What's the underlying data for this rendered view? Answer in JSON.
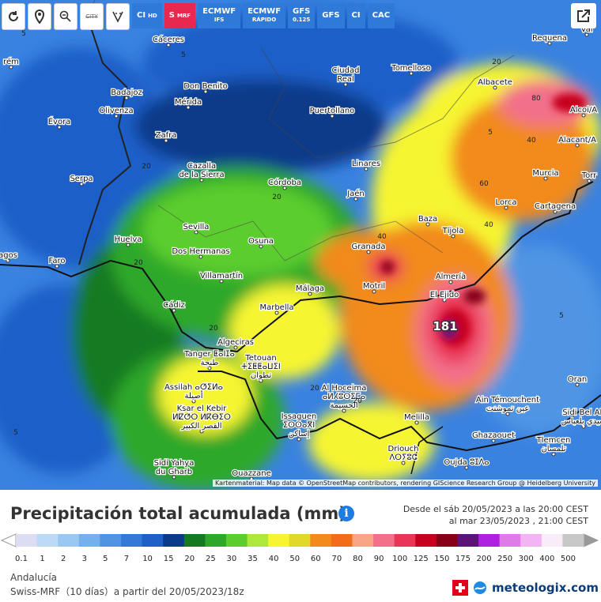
{
  "toolbar": {
    "buttons": [
      {
        "main": "CI",
        "sub": "HD"
      },
      {
        "main": "S",
        "sub": "MRF"
      },
      {
        "main": "ECMWF",
        "sub": "IFS"
      },
      {
        "main": "ECMWF",
        "sub": "RÁPIDO"
      },
      {
        "main": "GFS",
        "sub": "0.125"
      },
      {
        "main": "GFS"
      },
      {
        "main": "CI"
      },
      {
        "main": "CAC"
      }
    ],
    "city_toggle": "CITY"
  },
  "map": {
    "cities": [
      "Cáceres",
      "Tomelloso",
      "Ciudad\nReal",
      "Don Benito",
      "Mérida",
      "Badajoz",
      "Olivenza",
      "Puertollano",
      "Albacete",
      "Requena",
      "Évora",
      "Zafra",
      "Linares",
      "Murcia",
      "Alacant/A",
      "Alcoi/A",
      "Serpa",
      "Cazalla\nde la Sierra",
      "Córdoba",
      "Jaén",
      "Lorca",
      "Cartagena",
      "Baza",
      "Sevilla",
      "Huelva",
      "Osuna",
      "Tíjola",
      "Dos Hermanas",
      "Granada",
      "Faro",
      "agos",
      "Villamartín",
      "Almería",
      "Málaga",
      "Motril",
      "El Ejido",
      "Cádiz",
      "Marbella",
      "Algeciras",
      "Tanger ⵟⴰⵏⵊⴰ\nطنجة",
      "Tetouan\nⵜⵉⵟⵟⴰⵡⵉⵏ\nتطوان",
      "Assilah ⴰⵚⵉⵍⴰ\nأصيلة",
      "Ksar el Kebir\nⵍⵇⵚⵔ ⵍⴽⴱⵉⵔ\nالقصر الكبير",
      "Al Hoceima\nⴰⵍⵃⵓⵙⵉⵎⴰ\nالحسيمة",
      "Issaguen\nⵉⵙⵙⴰⴳⵏ\nإساكن",
      "Melilla",
      "Driouch\nⴷⵔⵢⵓⵛ",
      "Oujda ⵓⵊⴷⴰ",
      "Ghazaouet",
      "Ain Témouchent\nعين تموشنت",
      "Tlemcen\nتلمسان",
      "Oran",
      "Sidi Bel Ab\nسيدي بلعباس",
      "Sidi Yahya\ndu Gharb",
      "Ouazzane",
      "Vale\nVal",
      "Torr",
      "rém"
    ],
    "contours": [
      "5",
      "5",
      "20",
      "20",
      "20",
      "20",
      "40",
      "40",
      "60",
      "80",
      "40",
      "20",
      "20",
      "5",
      "20",
      "5",
      "5",
      "181"
    ]
  },
  "attribution": "Kartenmaterial: Map data © OpenStreetMap contributors, rendering GIScience Research Group @ Heidelberg University",
  "title": "Precipitación total acumulada (mm)",
  "info": "i",
  "period": [
    "Desde el sáb 20/05/2023 a  las 20:00  CEST",
    "al mar 23/05/2023 , 21:00 CEST"
  ],
  "legend": {
    "labels": [
      "0.1",
      "1",
      "2",
      "3",
      "5",
      "7",
      "10",
      "15",
      "20",
      "25",
      "30",
      "35",
      "40",
      "50",
      "60",
      "70",
      "80",
      "90",
      "100",
      "125",
      "150",
      "175",
      "200",
      "250",
      "300",
      "400",
      "500"
    ],
    "colors": [
      "#dcdcf2",
      "#bcdaf6",
      "#9ac8f2",
      "#74b0ec",
      "#4f95e4",
      "#3478d8",
      "#1f5fc8",
      "#0c3a8a",
      "#137a22",
      "#2ea82a",
      "#5ccd2e",
      "#aee83a",
      "#f6f530",
      "#e2d828",
      "#f28a1e",
      "#f36c1a",
      "#f8a486",
      "#f2708a",
      "#ea3656",
      "#c6001e",
      "#880018",
      "#5c1478",
      "#b020e0",
      "#e07ae8",
      "#f2b4f2",
      "#f8ecf8",
      "#c8c8c8"
    ]
  },
  "footer": {
    "region": "Andalucía",
    "model": "Swiss-MRF（10 días）a partir del 20/05/2023/18z"
  },
  "logo": "meteologix.com"
}
